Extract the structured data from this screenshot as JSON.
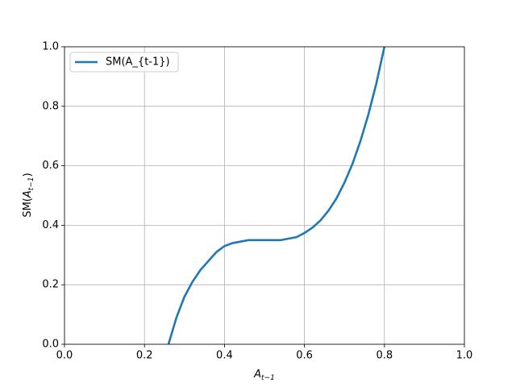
{
  "chart_data": {
    "type": "line",
    "x_label": {
      "base": "A",
      "sub": "t−1"
    },
    "y_label": {
      "pre": "SM(",
      "base": "A",
      "sub": "t−1",
      "post": ")"
    },
    "x": [
      0.26,
      0.28,
      0.3,
      0.32,
      0.34,
      0.36,
      0.38,
      0.4,
      0.42,
      0.44,
      0.46,
      0.5,
      0.54,
      0.56,
      0.58,
      0.6,
      0.62,
      0.64,
      0.66,
      0.68,
      0.7,
      0.72,
      0.74,
      0.76,
      0.78,
      0.8
    ],
    "series": [
      {
        "name": "SM(A_{t-1})",
        "color": "#1f77b4",
        "values": [
          0.0,
          0.09,
          0.16,
          0.21,
          0.25,
          0.28,
          0.31,
          0.33,
          0.34,
          0.345,
          0.35,
          0.35,
          0.35,
          0.355,
          0.36,
          0.374,
          0.392,
          0.416,
          0.449,
          0.49,
          0.543,
          0.606,
          0.683,
          0.773,
          0.878,
          1.0
        ]
      }
    ],
    "xlim": [
      0,
      1
    ],
    "ylim": [
      0,
      1
    ],
    "xticks": [
      {
        "value": 0,
        "label": "0.0"
      },
      0.2,
      0.4,
      0.6,
      0.8,
      {
        "value": 1,
        "label": "1.0"
      }
    ],
    "yticks": [
      {
        "value": 0,
        "label": "0.0"
      },
      0.2,
      0.4,
      0.6,
      0.8,
      {
        "value": 1,
        "label": "1.0"
      }
    ],
    "grid": true,
    "legend": "upper-left"
  }
}
